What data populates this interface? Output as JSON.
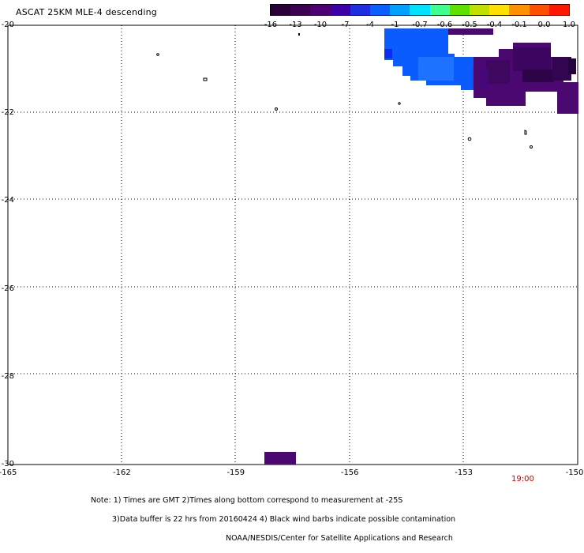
{
  "title": "ASCAT 25KM MLE-4 descending",
  "colorbar": {
    "labels": [
      "-16",
      "-13",
      "-10",
      "-7",
      "-4",
      "-1",
      "-0.7",
      "-0.6",
      "-0.5",
      "-0.4",
      "-0.1",
      "0.0",
      "1.0"
    ],
    "colors": [
      "#2a0038",
      "#3c0050",
      "#4d0074",
      "#3d00a8",
      "#1f2fe0",
      "#0a60ff",
      "#00a0ff",
      "#00e0ff",
      "#40ff90",
      "#60e000",
      "#c0e000",
      "#ffe000",
      "#ff9000",
      "#ff5000",
      "#ff1800"
    ]
  },
  "axes": {
    "y_labels": [
      "-20",
      "-22",
      "-24",
      "-26",
      "-28",
      "-30"
    ],
    "x_labels": [
      "-165",
      "-162",
      "-159",
      "-156",
      "-153",
      "-150"
    ],
    "lon_range": [
      -165,
      -150
    ],
    "lat_range": [
      -30,
      -20
    ]
  },
  "time_label": "19:00",
  "notes": {
    "line1": "Note: 1) Times are GMT 2)Times along bottom correspond to measurement at -25S",
    "line2": "3)Data buffer is 22 hrs from 20160424 4) Black wind barbs indicate possible contamination",
    "line3": "NOAA/NESDIS/Center for Satellite Applications and Research"
  },
  "colors": {
    "blue_swath": "#0a5cff",
    "light_blue": "#1f70ff",
    "dark_purple": "#4a0870",
    "darker_purple": "#3a0658",
    "darkest": "#2a0040",
    "time_red": "#cc0000"
  }
}
